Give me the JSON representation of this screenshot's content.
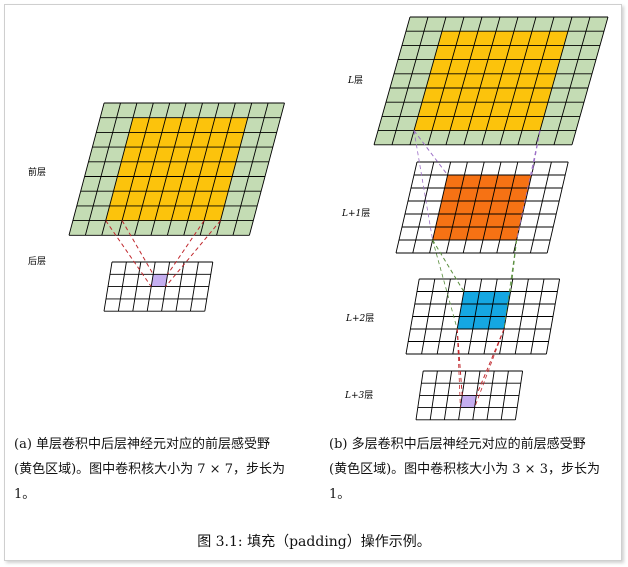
{
  "colors": {
    "green": "#c4dcb4",
    "yellow": "#fcc30c",
    "orange": "#f67214",
    "blue": "#15a7e2",
    "purple": "#c5aef0",
    "grid_line": "#000000",
    "red_dash": "#c0282d",
    "purple_dash": "#9c6fc6",
    "green_dash": "#5a8f3e"
  },
  "panel_a": {
    "front_label": "前层",
    "back_label": "后层",
    "front_grid": {
      "cols": 11,
      "rows": 9,
      "highlight_cols": [
        2,
        8
      ],
      "highlight_rows": [
        1,
        7
      ]
    },
    "back_grid": {
      "cols": 7,
      "rows": 4,
      "highlight_col": 3,
      "highlight_row": 1
    }
  },
  "panel_b": {
    "layers": [
      {
        "label": "L层",
        "cols": 11,
        "rows": 9,
        "highlight_cols": [
          2,
          8
        ],
        "highlight_rows": [
          1,
          7
        ],
        "fill": "yellow",
        "base": "green"
      },
      {
        "label": "L+1层",
        "cols": 9,
        "rows": 7,
        "highlight_cols": [
          2,
          6
        ],
        "highlight_rows": [
          1,
          5
        ],
        "fill": "orange",
        "base": "white"
      },
      {
        "label": "L+2层",
        "cols": 9,
        "rows": 6,
        "highlight_cols": [
          3,
          5
        ],
        "highlight_rows": [
          1,
          3
        ],
        "fill": "blue",
        "base": "white"
      },
      {
        "label": "L+3层",
        "cols": 7,
        "rows": 4,
        "highlight_col": 3,
        "highlight_row": 2,
        "fill": "purple",
        "base": "white"
      }
    ]
  },
  "captions": {
    "a_line1": "(a) 单层卷积中后层神经元对应的前层感受野",
    "a_line2": "(黄色区域)。图中卷积核大小为 7 × 7，步长为",
    "a_line3": "1。",
    "b_line1": "(b) 多层卷积中后层神经元对应的前层感受野",
    "b_line2": "(黄色区域)。图中卷积核大小为 3 × 3，步长为",
    "b_line3": "1。",
    "figure": "图 3.1: 填充（padding）操作示例。"
  }
}
